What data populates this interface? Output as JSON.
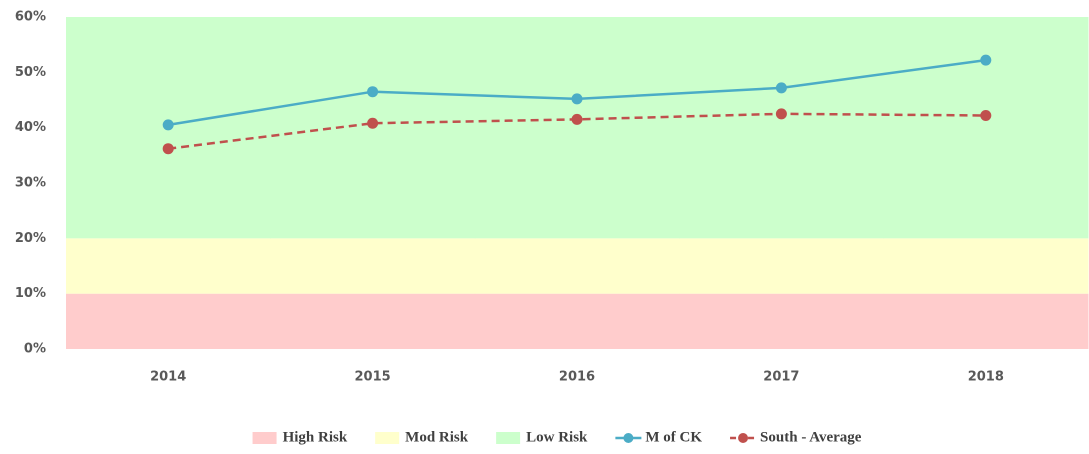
{
  "chart_data": {
    "type": "line",
    "categories": [
      "2014",
      "2015",
      "2016",
      "2017",
      "2018"
    ],
    "series": [
      {
        "name": "High Risk",
        "style": "area",
        "color": "#ffcccc",
        "values": [
          10,
          10,
          10,
          10,
          10
        ]
      },
      {
        "name": "Mod Risk",
        "style": "area",
        "color": "#ffffcc",
        "values": [
          10,
          10,
          10,
          10,
          10
        ]
      },
      {
        "name": "Low Risk",
        "style": "area",
        "color": "#ccffcc",
        "values": [
          40,
          40,
          40,
          40,
          40
        ]
      },
      {
        "name": "M of CK",
        "style": "line",
        "color": "#4bacc6",
        "dashed": false,
        "values": [
          40.5,
          46.5,
          45.2,
          47.2,
          52.2
        ]
      },
      {
        "name": "South - Average",
        "style": "line",
        "color": "#c0504d",
        "dashed": true,
        "values": [
          36.2,
          40.8,
          41.5,
          42.5,
          42.2
        ]
      }
    ],
    "ylim": [
      0,
      60
    ],
    "yticks": [
      {
        "value": 0,
        "label": "0%"
      },
      {
        "value": 10,
        "label": "10%"
      },
      {
        "value": 20,
        "label": "20%"
      },
      {
        "value": 30,
        "label": "30%"
      },
      {
        "value": 40,
        "label": "40%"
      },
      {
        "value": 50,
        "label": "50%"
      },
      {
        "value": 60,
        "label": "60%"
      }
    ],
    "legend": "bottom"
  }
}
